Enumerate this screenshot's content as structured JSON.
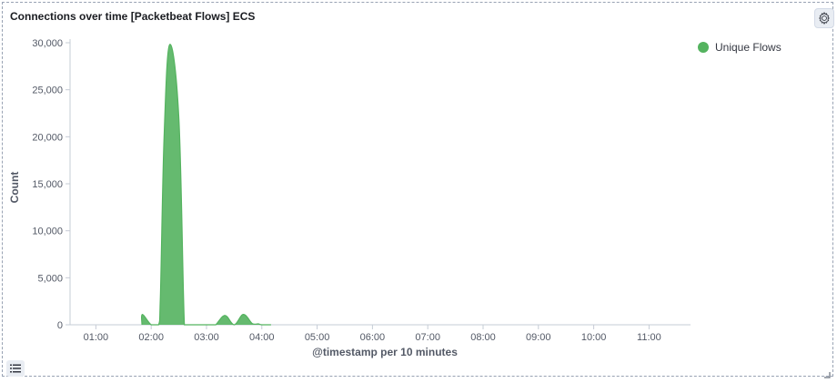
{
  "panel": {
    "title": "Connections over time [Packetbeat Flows] ECS",
    "settings_icon": "gear-icon",
    "legend_toggle_icon": "list-icon"
  },
  "legend": {
    "items": [
      {
        "label": "Unique Flows",
        "color": "#54b35f"
      }
    ]
  },
  "chart_data": {
    "type": "area",
    "title": "Connections over time [Packetbeat Flows] ECS",
    "xlabel": "@timestamp per 10 minutes",
    "ylabel": "Count",
    "ylim": [
      0,
      30000
    ],
    "y_ticks": [
      "0",
      "5,000",
      "10,000",
      "15,000",
      "20,000",
      "25,000",
      "30,000"
    ],
    "y_tick_values": [
      0,
      5000,
      10000,
      15000,
      20000,
      25000,
      30000
    ],
    "x_ticks": [
      "01:00",
      "02:00",
      "03:00",
      "04:00",
      "05:00",
      "06:00",
      "07:00",
      "08:00",
      "09:00",
      "10:00",
      "11:00"
    ],
    "x_tick_minutes": [
      60,
      120,
      180,
      240,
      300,
      360,
      420,
      480,
      540,
      600,
      660
    ],
    "xlim_minutes": [
      32,
      705
    ],
    "grid": false,
    "legend_position": "top-right",
    "series": [
      {
        "name": "Unique Flows",
        "color": "#54b35f",
        "x_minutes": [
          110,
          110.5,
          120,
          128,
          130,
          134,
          140,
          150,
          156,
          160,
          170,
          180,
          186,
          190,
          200,
          210,
          220,
          230,
          236,
          240,
          250
        ],
        "values": [
          0,
          1100,
          0,
          0,
          3000,
          20000,
          29800,
          22000,
          0,
          0,
          0,
          0,
          0,
          0,
          1000,
          0,
          1100,
          100,
          100,
          0,
          0
        ]
      }
    ]
  }
}
